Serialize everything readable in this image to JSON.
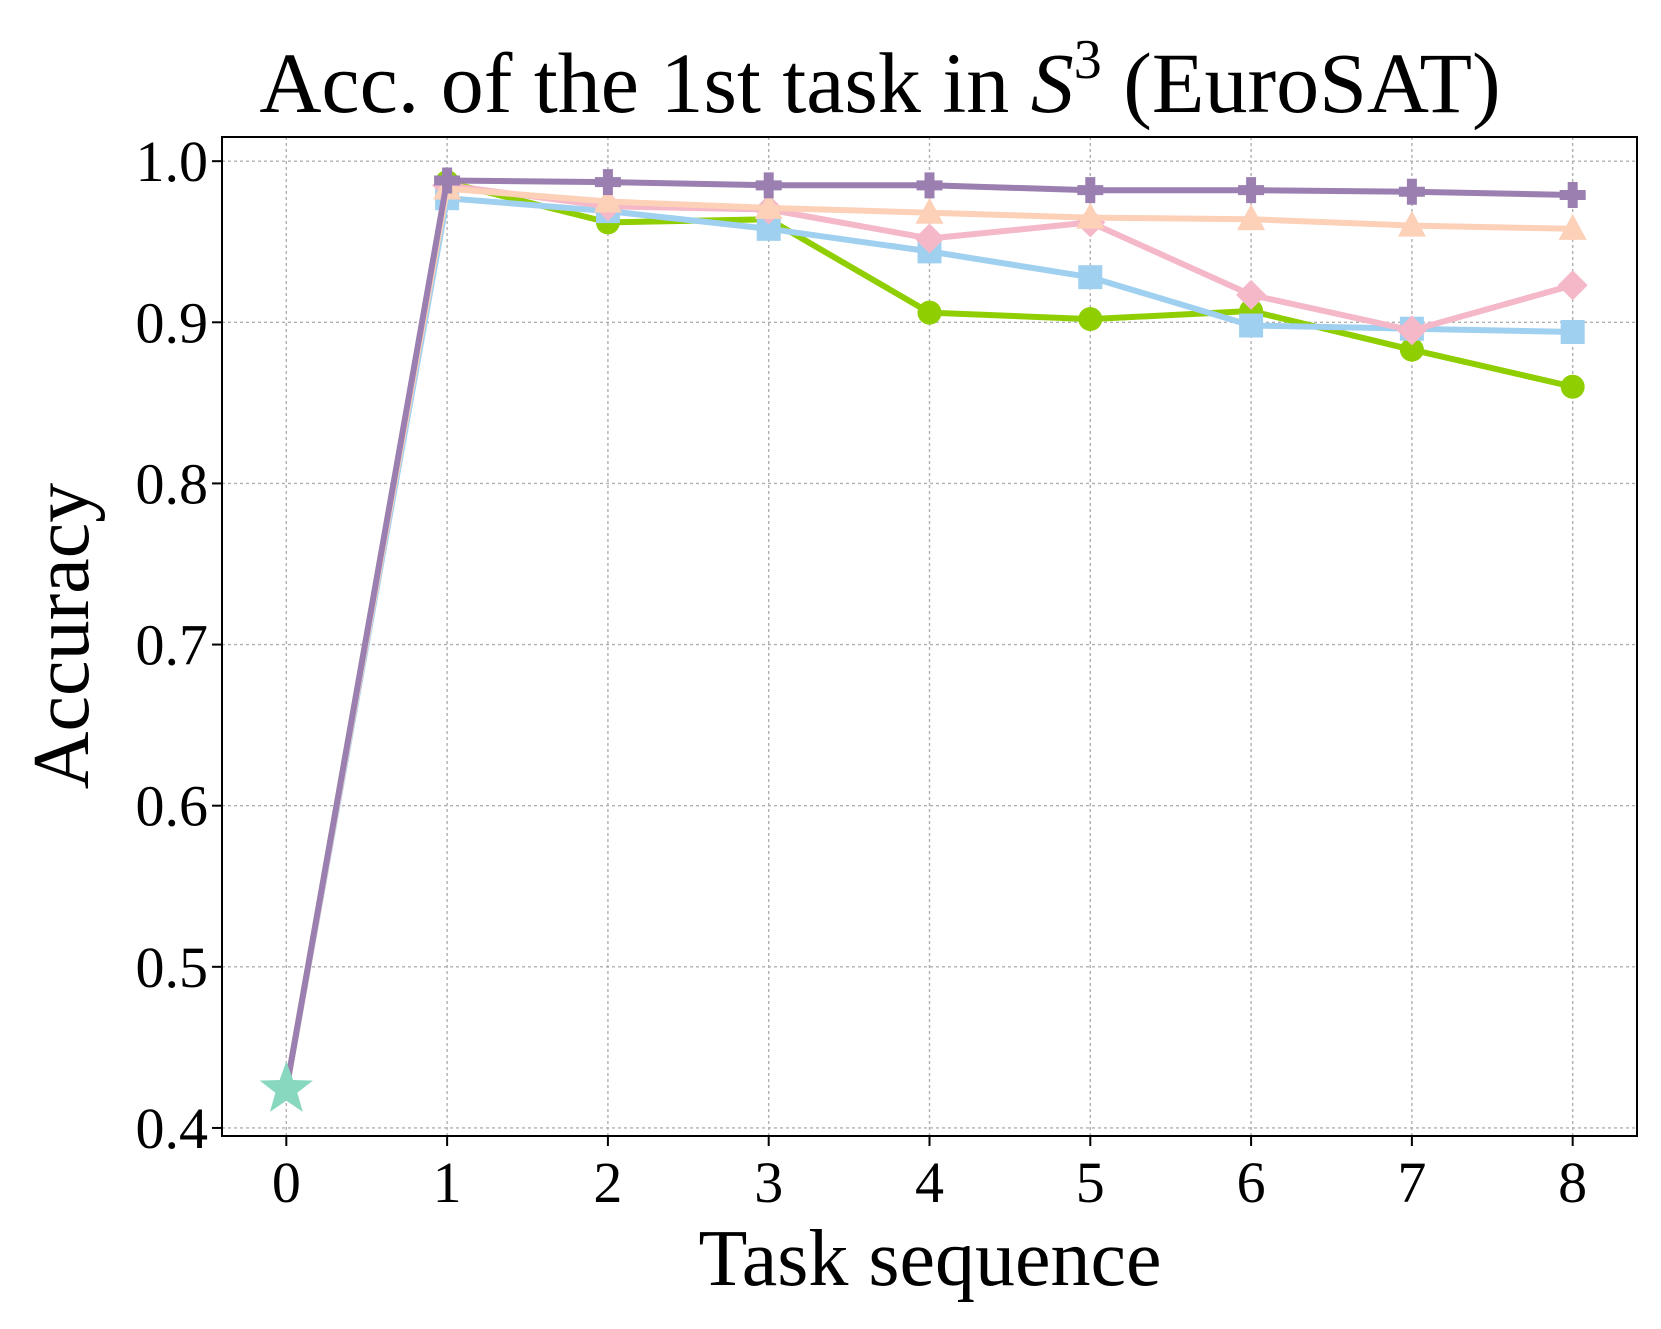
{
  "chart_data": {
    "type": "line",
    "title_prefix": "Acc. of the 1st task in ",
    "title_symbol": "S",
    "title_superscript": "3",
    "title_suffix": " (EuroSAT)",
    "xlabel": "Task sequence",
    "ylabel": "Accuracy",
    "x_ticks": [
      "0",
      "1",
      "2",
      "3",
      "4",
      "5",
      "6",
      "7",
      "8"
    ],
    "y_ticks": [
      "0.4",
      "0.5",
      "0.6",
      "0.7",
      "0.8",
      "0.9",
      "1.0"
    ],
    "xlim": [
      -0.4,
      8.4
    ],
    "ylim": [
      0.395,
      1.015
    ],
    "grid": true,
    "legend": "none",
    "start_point": {
      "x": 0,
      "y": 0.424,
      "marker": "star",
      "color": "#88d8c0"
    },
    "series": [
      {
        "color": "#8fce00",
        "marker": "circle",
        "x": [
          0,
          1,
          2,
          3,
          4,
          5,
          6,
          7,
          8
        ],
        "y": [
          0.424,
          0.987,
          0.962,
          0.964,
          0.906,
          0.902,
          0.907,
          0.883,
          0.86
        ]
      },
      {
        "color": "#a0d0f0",
        "marker": "square",
        "x": [
          0,
          1,
          2,
          3,
          4,
          5,
          6,
          7,
          8
        ],
        "y": [
          0.424,
          0.977,
          0.969,
          0.958,
          0.944,
          0.928,
          0.898,
          0.896,
          0.894
        ]
      },
      {
        "color": "#f4b8c8",
        "marker": "diamond",
        "x": [
          0,
          1,
          2,
          3,
          4,
          5,
          6,
          7,
          8
        ],
        "y": [
          0.424,
          0.985,
          0.972,
          0.97,
          0.952,
          0.962,
          0.917,
          0.895,
          0.923
        ]
      },
      {
        "color": "#fdd0b8",
        "marker": "triangle",
        "x": [
          0,
          1,
          2,
          3,
          4,
          5,
          6,
          7,
          8
        ],
        "y": [
          0.424,
          0.983,
          0.975,
          0.971,
          0.968,
          0.965,
          0.964,
          0.96,
          0.958
        ]
      },
      {
        "color": "#9b7fb0",
        "marker": "plus",
        "x": [
          0,
          1,
          2,
          3,
          4,
          5,
          6,
          7,
          8
        ],
        "y": [
          0.424,
          0.988,
          0.987,
          0.985,
          0.985,
          0.982,
          0.982,
          0.981,
          0.979
        ]
      }
    ]
  }
}
